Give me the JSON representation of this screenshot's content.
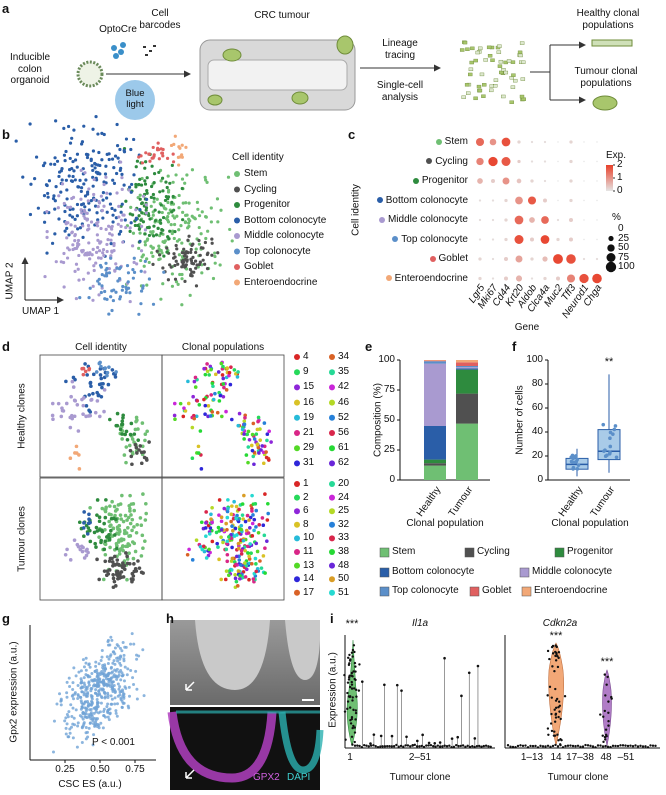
{
  "panels": [
    "a",
    "b",
    "c",
    "d",
    "e",
    "f",
    "g",
    "h",
    "i"
  ],
  "a": {
    "organoid": "Inducible colon organoid",
    "optocre": "OptoCre",
    "barcodes": "Cell barcodes",
    "light": "Blue light",
    "tumour": "CRC tumour",
    "lineage": "Lineage tracing",
    "single": "Single-cell analysis",
    "healthy": "Healthy clonal populations",
    "tumourpop": "Tumour clonal populations"
  },
  "identities": [
    {
      "name": "Stem",
      "color": "#6fbf73"
    },
    {
      "name": "Cycling",
      "color": "#505050"
    },
    {
      "name": "Progenitor",
      "color": "#2e8b3e"
    },
    {
      "name": "Bottom colonocyte",
      "color": "#2a5ea8"
    },
    {
      "name": "Middle colonocyte",
      "color": "#a99ad0"
    },
    {
      "name": "Top colonocyte",
      "color": "#5b8fc9"
    },
    {
      "name": "Goblet",
      "color": "#e06060"
    },
    {
      "name": "Enteroendocrine",
      "color": "#f2a877"
    }
  ],
  "b": {
    "title": "Cell identity",
    "x_axis": "UMAP 1",
    "y_axis": "UMAP 2"
  },
  "c": {
    "genes": [
      "Lgr5",
      "Mki67",
      "Cd44",
      "Krt20",
      "Aldob",
      "Clca4a",
      "Muc2",
      "Tff3",
      "Neurod1",
      "Chga"
    ],
    "y_axis": "Cell identity",
    "x_axis": "Gene",
    "exp_title": "Exp.",
    "exp_ticks": [
      0,
      1,
      2
    ],
    "pct_title": "%",
    "pct_ticks": [
      0,
      25,
      50,
      75,
      100
    ],
    "exp": [
      [
        1.5,
        1.0,
        1.8,
        0.2,
        0.1,
        0.1,
        0,
        0.2,
        0,
        0
      ],
      [
        1.2,
        1.9,
        1.7,
        0.3,
        0.1,
        0.1,
        0,
        0.2,
        0,
        0
      ],
      [
        0.6,
        0.3,
        1.0,
        0.4,
        0.2,
        0.1,
        0,
        0.2,
        0,
        0
      ],
      [
        0.1,
        0.1,
        0.2,
        1.0,
        1.7,
        0.3,
        0,
        0.2,
        0,
        0
      ],
      [
        0.1,
        0.1,
        0.2,
        1.5,
        0.6,
        1.5,
        0.1,
        0.3,
        0,
        0
      ],
      [
        0.1,
        0.1,
        0.2,
        1.8,
        0.3,
        1.9,
        0.2,
        0.3,
        0,
        0
      ],
      [
        0.2,
        0.1,
        0.3,
        0.8,
        0.2,
        0.5,
        1.9,
        1.8,
        0.1,
        0.1
      ],
      [
        0.2,
        0.1,
        0.3,
        0.6,
        0.1,
        0.2,
        0.3,
        1.2,
        1.8,
        1.9
      ]
    ],
    "pct": [
      [
        60,
        40,
        70,
        10,
        5,
        5,
        2,
        10,
        2,
        2
      ],
      [
        50,
        80,
        75,
        10,
        5,
        5,
        2,
        10,
        2,
        2
      ],
      [
        30,
        15,
        45,
        20,
        10,
        5,
        2,
        10,
        2,
        2
      ],
      [
        5,
        5,
        10,
        55,
        60,
        15,
        2,
        10,
        2,
        2
      ],
      [
        5,
        5,
        10,
        70,
        30,
        55,
        5,
        15,
        2,
        2
      ],
      [
        5,
        5,
        10,
        75,
        15,
        70,
        10,
        15,
        2,
        2
      ],
      [
        10,
        5,
        15,
        45,
        10,
        25,
        90,
        85,
        5,
        5
      ],
      [
        10,
        5,
        15,
        35,
        5,
        10,
        15,
        60,
        80,
        85
      ]
    ]
  },
  "d": {
    "col_titles": [
      "Cell identity",
      "Clonal populations"
    ],
    "row_titles": [
      "Healthy clones",
      "Tumour clones"
    ],
    "healthy_clones": [
      4,
      9,
      15,
      16,
      19,
      21,
      29,
      31,
      34,
      35,
      42,
      46,
      52,
      56,
      61,
      62
    ],
    "tumour_clones": [
      1,
      2,
      6,
      8,
      10,
      11,
      13,
      14,
      17,
      20,
      24,
      25,
      32,
      33,
      38,
      48,
      50,
      51
    ]
  },
  "e": {
    "type": "bar",
    "stacked": true,
    "categories": [
      "Healthy",
      "Tumour"
    ],
    "y_axis": "Composition (%)",
    "x_axis": "Clonal population",
    "ylim": [
      0,
      100
    ],
    "yticks": [
      0,
      25,
      50,
      75,
      100
    ],
    "series": [
      {
        "name": "Stem",
        "color": "#6fbf73",
        "values": [
          12,
          47
        ]
      },
      {
        "name": "Cycling",
        "color": "#505050",
        "values": [
          2,
          25
        ]
      },
      {
        "name": "Progenitor",
        "color": "#2e8b3e",
        "values": [
          3,
          20
        ]
      },
      {
        "name": "Bottom colonocyte",
        "color": "#2a5ea8",
        "values": [
          28,
          1
        ]
      },
      {
        "name": "Middle colonocyte",
        "color": "#a99ad0",
        "values": [
          52,
          1
        ]
      },
      {
        "name": "Top colonocyte",
        "color": "#5b8fc9",
        "values": [
          2,
          1
        ]
      },
      {
        "name": "Goblet",
        "color": "#e06060",
        "values": [
          0.5,
          3
        ]
      },
      {
        "name": "Enteroendocrine",
        "color": "#f2a877",
        "values": [
          0.5,
          2
        ]
      }
    ]
  },
  "f": {
    "type": "box",
    "categories": [
      "Healthy",
      "Tumour"
    ],
    "y_axis": "Number of cells",
    "x_axis": "Clonal population",
    "ylim": [
      0,
      100
    ],
    "yticks": [
      0,
      20,
      40,
      60,
      80,
      100
    ],
    "color": "#a9cbe8",
    "boxes": [
      {
        "min": 3,
        "q1": 9,
        "median": 13,
        "q3": 18,
        "max": 26
      },
      {
        "min": 6,
        "q1": 17,
        "median": 24,
        "q3": 42,
        "max": 88
      }
    ],
    "annotation": "**"
  },
  "g": {
    "type": "scatter",
    "x_axis": "CSC ES (a.u.)",
    "y_axis": "Gpx2 expression (a.u.)",
    "xlim": [
      0,
      0.9
    ],
    "xticks": [
      0.25,
      {
        "value": 0.5,
        "label": "0.50"
      },
      0.75
    ],
    "annotation": "P < 0.001",
    "color": "#6fa3d6"
  },
  "h": {
    "stain1": "GPX2",
    "stain2": "DAPI"
  },
  "i": {
    "x_axis": "Tumour clone",
    "y_axis": "Expression (a.u.)",
    "plots": [
      {
        "title": "Il1a",
        "annotations": [
          "***"
        ],
        "tick_labels": [
          "1",
          "2–51"
        ]
      },
      {
        "title": "Cdkn2a",
        "annotations": [
          "***",
          "***"
        ],
        "tick_labels": [
          "1–13",
          "14",
          "17–38",
          "48",
          "–51"
        ]
      }
    ]
  }
}
